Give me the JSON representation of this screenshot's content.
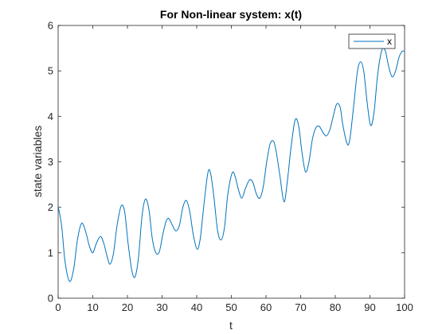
{
  "chart_data": {
    "type": "line",
    "title": "For Non-linear system: x(t)",
    "xlabel": "t",
    "ylabel": "state variables",
    "xlim": [
      0,
      100
    ],
    "ylim": [
      0,
      6
    ],
    "xticks": [
      "0",
      "10",
      "20",
      "30",
      "40",
      "50",
      "60",
      "70",
      "80",
      "90",
      "100"
    ],
    "yticks": [
      "0",
      "1",
      "2",
      "3",
      "4",
      "5",
      "6"
    ],
    "grid": false,
    "legend_position": "top-right",
    "line_color": "#0072BD",
    "series": [
      {
        "name": "x",
        "points": [
          [
            0,
            2.02
          ],
          [
            1,
            1.6
          ],
          [
            2,
            0.8
          ],
          [
            3.3,
            0.37
          ],
          [
            4.5,
            0.65
          ],
          [
            5.6,
            1.3
          ],
          [
            6.8,
            1.65
          ],
          [
            8,
            1.45
          ],
          [
            9,
            1.15
          ],
          [
            10,
            1.0
          ],
          [
            11,
            1.2
          ],
          [
            12.2,
            1.36
          ],
          [
            13.2,
            1.2
          ],
          [
            14.2,
            0.9
          ],
          [
            15,
            0.75
          ],
          [
            16,
            1.0
          ],
          [
            17,
            1.6
          ],
          [
            18.2,
            2.03
          ],
          [
            19.2,
            1.9
          ],
          [
            20.2,
            1.2
          ],
          [
            21.3,
            0.6
          ],
          [
            22.2,
            0.47
          ],
          [
            23.2,
            0.9
          ],
          [
            24.2,
            1.8
          ],
          [
            25.2,
            2.18
          ],
          [
            26.2,
            1.95
          ],
          [
            27.2,
            1.3
          ],
          [
            28.2,
            1.0
          ],
          [
            29.2,
            1.02
          ],
          [
            30.2,
            1.4
          ],
          [
            31.2,
            1.7
          ],
          [
            32,
            1.75
          ],
          [
            33,
            1.6
          ],
          [
            34,
            1.48
          ],
          [
            35,
            1.6
          ],
          [
            36,
            2.0
          ],
          [
            37,
            2.15
          ],
          [
            38,
            1.9
          ],
          [
            39,
            1.4
          ],
          [
            40.1,
            1.08
          ],
          [
            41,
            1.3
          ],
          [
            42,
            2.0
          ],
          [
            43.2,
            2.75
          ],
          [
            44,
            2.75
          ],
          [
            45,
            2.2
          ],
          [
            46,
            1.5
          ],
          [
            47,
            1.28
          ],
          [
            48,
            1.55
          ],
          [
            49,
            2.3
          ],
          [
            50.2,
            2.75
          ],
          [
            51,
            2.7
          ],
          [
            52,
            2.4
          ],
          [
            53,
            2.2
          ],
          [
            54,
            2.4
          ],
          [
            55.2,
            2.6
          ],
          [
            56.2,
            2.55
          ],
          [
            57.2,
            2.3
          ],
          [
            58.2,
            2.2
          ],
          [
            59.2,
            2.45
          ],
          [
            60.2,
            3.0
          ],
          [
            61.2,
            3.4
          ],
          [
            62.2,
            3.45
          ],
          [
            63,
            3.2
          ],
          [
            64,
            2.7
          ],
          [
            65.2,
            2.12
          ],
          [
            66.2,
            2.6
          ],
          [
            67.2,
            3.3
          ],
          [
            68.4,
            3.92
          ],
          [
            69.4,
            3.8
          ],
          [
            70.4,
            3.2
          ],
          [
            71.4,
            2.78
          ],
          [
            72.4,
            3.0
          ],
          [
            73.4,
            3.5
          ],
          [
            74.4,
            3.75
          ],
          [
            75.4,
            3.78
          ],
          [
            76.4,
            3.65
          ],
          [
            77.4,
            3.57
          ],
          [
            78.4,
            3.7
          ],
          [
            79.4,
            4.0
          ],
          [
            80.4,
            4.27
          ],
          [
            81.4,
            4.2
          ],
          [
            82.2,
            3.8
          ],
          [
            83.4,
            3.4
          ],
          [
            84.2,
            3.5
          ],
          [
            85.4,
            4.3
          ],
          [
            86.4,
            5.0
          ],
          [
            87.3,
            5.2
          ],
          [
            88.2,
            5.0
          ],
          [
            89.2,
            4.3
          ],
          [
            90.2,
            3.8
          ],
          [
            91.2,
            4.1
          ],
          [
            92.2,
            4.9
          ],
          [
            93.4,
            5.45
          ],
          [
            94.4,
            5.45
          ],
          [
            95.4,
            5.1
          ],
          [
            96.4,
            4.87
          ],
          [
            97.4,
            5.0
          ],
          [
            98.4,
            5.3
          ],
          [
            99.3,
            5.43
          ],
          [
            100,
            5.43
          ]
        ]
      }
    ]
  }
}
